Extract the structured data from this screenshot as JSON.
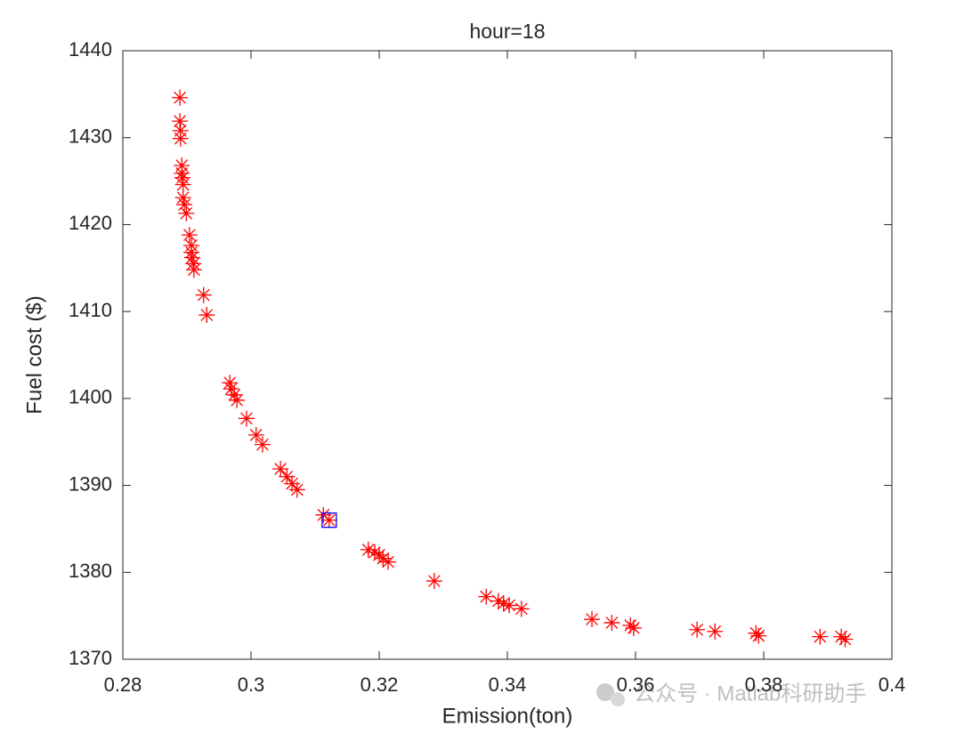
{
  "chart_data": {
    "type": "scatter",
    "title": "hour=18",
    "x_label": "Emission(ton)",
    "y_label": "Fuel cost ($)",
    "xlim": [
      0.28,
      0.4
    ],
    "xticks": [
      0.28,
      0.3,
      0.32,
      0.34,
      0.36,
      0.38,
      0.4
    ],
    "ylim": [
      1370,
      1440
    ],
    "yticks": [
      1370,
      1380,
      1390,
      1400,
      1410,
      1420,
      1430,
      1440
    ],
    "grid": false,
    "series": [
      {
        "color": "#ff0000",
        "marker": "asterisk",
        "x": [
          0.2889,
          0.2889,
          0.289,
          0.289,
          0.2892,
          0.2892,
          0.2893,
          0.2894,
          0.2894,
          0.2896,
          0.2899,
          0.2904,
          0.2907,
          0.2907,
          0.2908,
          0.291,
          0.2911,
          0.2926,
          0.2931,
          0.2967,
          0.2969,
          0.2974,
          0.2978,
          0.2993,
          0.3008,
          0.3018,
          0.3046,
          0.3056,
          0.3064,
          0.3072,
          0.3113,
          0.3122,
          0.3183,
          0.3193,
          0.32,
          0.3206,
          0.3214,
          0.3286,
          0.3367,
          0.3386,
          0.3394,
          0.3403,
          0.3422,
          0.3532,
          0.3563,
          0.3592,
          0.3597,
          0.3696,
          0.3724,
          0.3788,
          0.3792,
          0.3888,
          0.3921,
          0.3927
        ],
        "values": [
          1434.6,
          1431.9,
          1430.8,
          1429.9,
          1426.8,
          1425.9,
          1425.4,
          1424.6,
          1423.1,
          1422.3,
          1421.3,
          1418.8,
          1417.6,
          1416.8,
          1416.2,
          1415.5,
          1414.8,
          1411.9,
          1409.6,
          1401.8,
          1401.1,
          1400.4,
          1399.8,
          1397.7,
          1395.8,
          1394.7,
          1391.9,
          1391.0,
          1390.2,
          1389.5,
          1386.6,
          1386.0,
          1382.6,
          1382.3,
          1382.0,
          1381.6,
          1381.2,
          1379.0,
          1377.2,
          1376.7,
          1376.4,
          1376.2,
          1375.8,
          1374.6,
          1374.2,
          1373.9,
          1373.6,
          1373.4,
          1373.2,
          1373.0,
          1372.7,
          1372.6,
          1372.6,
          1372.3
        ]
      },
      {
        "color": "#0000ff",
        "marker": "square",
        "x": [
          0.3122
        ],
        "values": [
          1386.0
        ]
      }
    ],
    "watermark": "公众号 · Matlab科研助手"
  }
}
